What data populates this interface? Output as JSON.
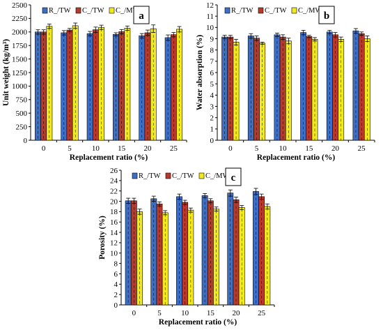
{
  "colors": {
    "series": [
      "#3d6fc6",
      "#b83a2c",
      "#f2ea1c"
    ],
    "bar_stroke": "#000000",
    "axis": "#000000",
    "letter_box_stroke": "#000000"
  },
  "chart_data": [
    {
      "type": "bar",
      "panel_label": "a",
      "categories": [
        "0",
        "5",
        "10",
        "15",
        "20",
        "25"
      ],
      "xlabel": "Replacement ratio (%)",
      "ylabel": "Unit weight (kg/m³)",
      "ylim": [
        0,
        2500
      ],
      "yticks": [
        0,
        250,
        500,
        750,
        1000,
        1250,
        1500,
        1750,
        2000,
        2250,
        2500
      ],
      "grid": false,
      "legend_position": "top-left",
      "series": [
        {
          "name": "R_/TW",
          "values": [
            2000,
            1985,
            1970,
            1955,
            1930,
            1895
          ],
          "errors": [
            40,
            40,
            40,
            30,
            40,
            50
          ]
        },
        {
          "name": "C_/TW",
          "values": [
            2000,
            2035,
            2040,
            2005,
            1985,
            1950
          ],
          "errors": [
            40,
            30,
            50,
            40,
            50,
            40
          ]
        },
        {
          "name": "C_/MW",
          "values": [
            2105,
            2115,
            2085,
            2070,
            2060,
            2050
          ],
          "errors": [
            40,
            50,
            40,
            40,
            70,
            50
          ]
        }
      ]
    },
    {
      "type": "bar",
      "panel_label": "b",
      "categories": [
        "0",
        "5",
        "10",
        "15",
        "20",
        "25"
      ],
      "xlabel": "Replacement ratio (%)",
      "ylabel": "Water absorption (%)",
      "ylim": [
        0,
        12
      ],
      "yticks": [
        0,
        1,
        2,
        3,
        4,
        5,
        6,
        7,
        8,
        9,
        10,
        11,
        12
      ],
      "grid": false,
      "legend_position": "top-left",
      "series": [
        {
          "name": "R_/TW",
          "values": [
            9.15,
            9.25,
            9.35,
            9.55,
            9.6,
            9.7
          ],
          "errors": [
            0.15,
            0.2,
            0.15,
            0.2,
            0.15,
            0.2
          ]
        },
        {
          "name": "C_/TW",
          "values": [
            9.15,
            9.05,
            9.15,
            9.2,
            9.35,
            9.45
          ],
          "errors": [
            0.15,
            0.2,
            0.2,
            0.1,
            0.2,
            0.15
          ]
        },
        {
          "name": "C_/MW",
          "values": [
            8.7,
            8.6,
            8.8,
            8.95,
            8.95,
            9.0
          ],
          "errors": [
            0.25,
            0.1,
            0.25,
            0.15,
            0.2,
            0.25
          ]
        }
      ]
    },
    {
      "type": "bar",
      "panel_label": "c",
      "categories": [
        "0",
        "5",
        "10",
        "15",
        "20",
        "25"
      ],
      "xlabel": "Replacement ratio (%)",
      "ylabel": "Porosity (%)",
      "ylim": [
        0,
        26
      ],
      "yticks": [
        0,
        2,
        4,
        6,
        8,
        10,
        12,
        14,
        16,
        18,
        20,
        22,
        24,
        26
      ],
      "grid": false,
      "legend_position": "top-left",
      "series": [
        {
          "name": "R_/TW",
          "values": [
            20.1,
            20.5,
            20.9,
            21.1,
            21.6,
            21.9
          ],
          "errors": [
            0.5,
            0.5,
            0.5,
            0.4,
            0.6,
            0.6
          ]
        },
        {
          "name": "C_/TW",
          "values": [
            20.1,
            19.5,
            19.8,
            20.1,
            20.3,
            20.9
          ],
          "errors": [
            0.5,
            0.4,
            0.4,
            0.4,
            0.5,
            0.5
          ]
        },
        {
          "name": "C_/MW",
          "values": [
            18.0,
            17.8,
            18.3,
            18.5,
            18.8,
            19.0
          ],
          "errors": [
            0.5,
            0.4,
            0.4,
            0.4,
            0.4,
            0.5
          ]
        }
      ]
    }
  ]
}
